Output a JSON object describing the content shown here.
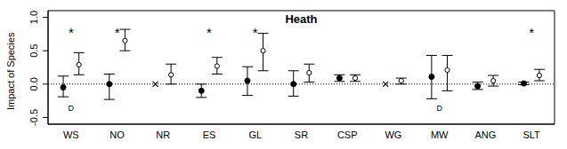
{
  "chart_data": {
    "type": "scatter",
    "title": "Heath",
    "y_label": "Impact of Species",
    "categories": [
      "WS",
      "NO",
      "NR",
      "ES",
      "GL",
      "SR",
      "CSP",
      "WG",
      "MW",
      "ANG",
      "SLT"
    ],
    "series": [
      {
        "color": "#000000",
        "marker": "filled_circle",
        "values": [
          -0.05,
          0.0,
          null,
          -0.1,
          0.05,
          0.0,
          0.09,
          null,
          0.11,
          -0.03,
          0.01
        ],
        "lower": [
          -0.19,
          -0.23,
          null,
          -0.2,
          -0.17,
          -0.18,
          0.04,
          null,
          -0.22,
          -0.08,
          -0.01
        ],
        "upper": [
          0.12,
          0.15,
          null,
          0.0,
          0.26,
          0.2,
          0.14,
          null,
          0.43,
          0.03,
          0.03
        ]
      },
      {
        "color": "#000000",
        "marker": "open_circle",
        "values": [
          0.29,
          0.65,
          0.14,
          0.27,
          0.5,
          0.17,
          0.09,
          0.05,
          0.21,
          0.05,
          0.13
        ],
        "lower": [
          0.14,
          0.5,
          0.0,
          0.15,
          0.2,
          0.03,
          0.04,
          0.0,
          -0.1,
          -0.03,
          0.05
        ],
        "upper": [
          0.47,
          0.82,
          0.3,
          0.4,
          0.76,
          0.3,
          0.14,
          0.09,
          0.43,
          0.13,
          0.22
        ]
      },
      {
        "color": "#000000",
        "marker": "x",
        "values": [
          null,
          null,
          0.0,
          null,
          null,
          null,
          null,
          0.0,
          null,
          null,
          null
        ]
      }
    ],
    "annotations": [
      {
        "category": "WS",
        "text": "*",
        "y": 0.76
      },
      {
        "category": "NO",
        "text": "*",
        "y": 0.76
      },
      {
        "category": "ES",
        "text": "*",
        "y": 0.76
      },
      {
        "category": "GL",
        "text": "*",
        "y": 0.76
      },
      {
        "category": "SLT",
        "text": "*",
        "y": 0.76
      },
      {
        "category": "WS",
        "text": "D",
        "y": -0.37
      },
      {
        "category": "MW",
        "text": "D",
        "y": -0.37
      }
    ],
    "reference_y": 0.0,
    "ylim": [
      -0.6,
      1.1
    ],
    "yticks": [
      -0.5,
      {
        "value": 0.0,
        "label": "0.0"
      },
      0.5,
      {
        "value": 1.0,
        "label": "1.0"
      }
    ],
    "grid": false
  }
}
